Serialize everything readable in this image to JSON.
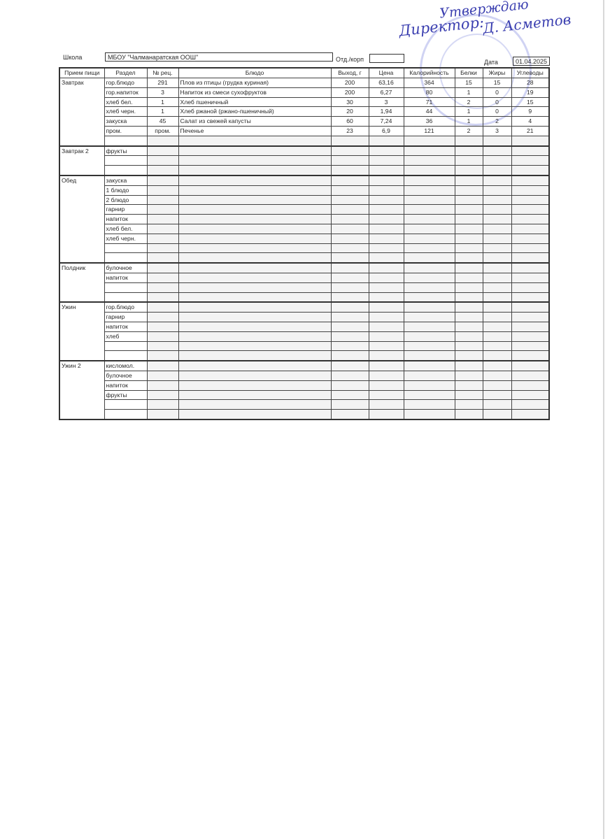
{
  "approval": {
    "line1": "Утверждаю",
    "line2": "Директор:",
    "signature": "Д. Асметов"
  },
  "header": {
    "school_label": "Школа",
    "school_value": "МБОУ \"Чалманаратская ООШ\"",
    "dept_label": "Отд./корп",
    "dept_value": "",
    "date_label": "Дата",
    "date_value": "01.04.2025"
  },
  "columns": [
    "Прием пищи",
    "Раздел",
    "№ рец.",
    "Блюдо",
    "Выход, г",
    "Цена",
    "Калорийность",
    "Белки",
    "Жиры",
    "Углеводы"
  ],
  "meals": [
    {
      "name": "Завтрак",
      "rows": [
        [
          "гор.блюдо",
          "291",
          "Плов из птицы (грудка куриная)",
          "200",
          "63,16",
          "364",
          "15",
          "15",
          "28"
        ],
        [
          "гор.напиток",
          "3",
          "Напиток из смеси сухофруктов",
          "200",
          "6,27",
          "80",
          "1",
          "0",
          "19"
        ],
        [
          "хлеб бел.",
          "1",
          "Хлеб пшеничный",
          "30",
          "3",
          "71",
          "2",
          "0",
          "15"
        ],
        [
          "хлеб черн.",
          "1",
          "Хлеб ржаной (ржано-пшеничный)",
          "20",
          "1,94",
          "44",
          "1",
          "0",
          "9"
        ],
        [
          "закуска",
          "45",
          "Салат из свежей капусты",
          "60",
          "7,24",
          "36",
          "1",
          "2",
          "4"
        ],
        [
          "пром.",
          "пром.",
          "Печенье",
          "23",
          "6,9",
          "121",
          "2",
          "3",
          "21"
        ],
        [
          "",
          "",
          "",
          "",
          "",
          "",
          "",
          "",
          ""
        ]
      ]
    },
    {
      "name": "Завтрак 2",
      "rows": [
        [
          "фрукты"
        ],
        [
          ""
        ],
        [
          ""
        ]
      ]
    },
    {
      "name": "Обед",
      "rows": [
        [
          "закуска"
        ],
        [
          "1 блюдо"
        ],
        [
          "2 блюдо"
        ],
        [
          "гарнир"
        ],
        [
          "напиток"
        ],
        [
          "хлеб бел."
        ],
        [
          "хлеб черн."
        ],
        [
          ""
        ],
        [
          ""
        ]
      ]
    },
    {
      "name": "Полдник",
      "rows": [
        [
          "булочное"
        ],
        [
          "напиток"
        ],
        [
          ""
        ],
        [
          ""
        ]
      ]
    },
    {
      "name": "Ужин",
      "rows": [
        [
          "гор.блюдо"
        ],
        [
          "гарнир"
        ],
        [
          "напиток"
        ],
        [
          "хлеб"
        ],
        [
          ""
        ],
        [
          ""
        ]
      ]
    },
    {
      "name": "Ужин 2",
      "rows": [
        [
          "кисломол."
        ],
        [
          "булочное"
        ],
        [
          "напиток"
        ],
        [
          "фрукты"
        ],
        [
          ""
        ],
        [
          ""
        ]
      ]
    }
  ]
}
